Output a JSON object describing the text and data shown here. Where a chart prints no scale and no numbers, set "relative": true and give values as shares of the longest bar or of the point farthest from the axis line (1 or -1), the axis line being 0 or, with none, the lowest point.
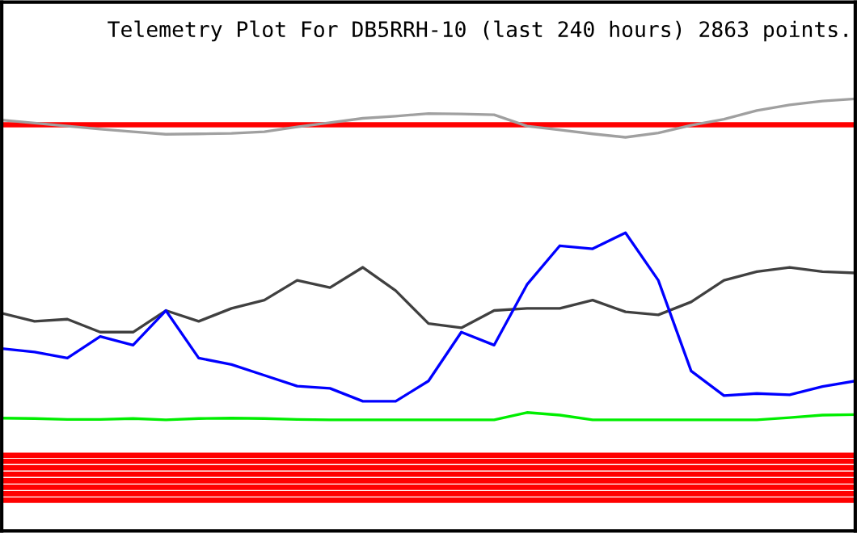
{
  "chart_data": {
    "type": "line",
    "title": "Telemetry Plot For DB5RRH-10 (last 240 hours) 2863 points.",
    "relative": true,
    "marker": "none",
    "line_style": "solid",
    "categories": [
      null,
      null,
      null,
      null,
      null,
      null,
      null,
      null,
      null,
      null,
      null,
      null,
      null,
      null,
      null,
      null,
      null,
      null,
      null,
      null,
      null,
      null,
      null,
      null,
      null,
      null,
      null
    ],
    "series": [
      {
        "color": "#a0a0a0",
        "values": [
          0.951,
          0.944,
          0.937,
          0.93,
          0.924,
          0.918,
          0.919,
          0.92,
          0.924,
          0.935,
          0.945,
          0.955,
          0.96,
          0.966,
          0.965,
          0.963,
          0.937,
          0.928,
          0.919,
          0.911,
          0.921,
          0.939,
          0.953,
          0.973,
          0.986,
          0.995,
          1.0
        ]
      },
      {
        "color": "#404040",
        "values": [
          0.504,
          0.485,
          0.49,
          0.46,
          0.46,
          0.51,
          0.485,
          0.515,
          0.534,
          0.58,
          0.563,
          0.61,
          0.556,
          0.48,
          0.47,
          0.51,
          0.515,
          0.515,
          0.534,
          0.507,
          0.5,
          0.53,
          0.58,
          0.6,
          0.61,
          0.6,
          0.597
        ]
      },
      {
        "color": "#0000ff",
        "values": [
          0.422,
          0.414,
          0.4,
          0.45,
          0.43,
          0.51,
          0.4,
          0.385,
          0.36,
          0.335,
          0.33,
          0.3,
          0.3,
          0.347,
          0.46,
          0.43,
          0.57,
          0.66,
          0.653,
          0.69,
          0.58,
          0.37,
          0.313,
          0.318,
          0.315,
          0.334,
          0.347
        ]
      },
      {
        "color": "#00ee00",
        "values": [
          0.261,
          0.26,
          0.258,
          0.258,
          0.26,
          0.257,
          0.26,
          0.261,
          0.26,
          0.258,
          0.257,
          0.257,
          0.257,
          0.257,
          0.257,
          0.257,
          0.274,
          0.268,
          0.257,
          0.257,
          0.257,
          0.257,
          0.257,
          0.257,
          0.262,
          0.268,
          0.269
        ]
      }
    ],
    "ref_lines": [
      {
        "axis": "y",
        "value": 0.94,
        "color": "#ff0000"
      },
      {
        "axis": "y",
        "value": 0.175,
        "color": "#ff0000"
      },
      {
        "axis": "y",
        "value": 0.161,
        "color": "#ff0000"
      },
      {
        "axis": "y",
        "value": 0.146,
        "color": "#ff0000"
      },
      {
        "axis": "y",
        "value": 0.131,
        "color": "#ff0000"
      },
      {
        "axis": "y",
        "value": 0.116,
        "color": "#ff0000"
      },
      {
        "axis": "y",
        "value": 0.101,
        "color": "#ff0000"
      },
      {
        "axis": "y",
        "value": 0.086,
        "color": "#ff0000"
      },
      {
        "axis": "y",
        "value": 0.071,
        "color": "#ff0000"
      }
    ]
  }
}
